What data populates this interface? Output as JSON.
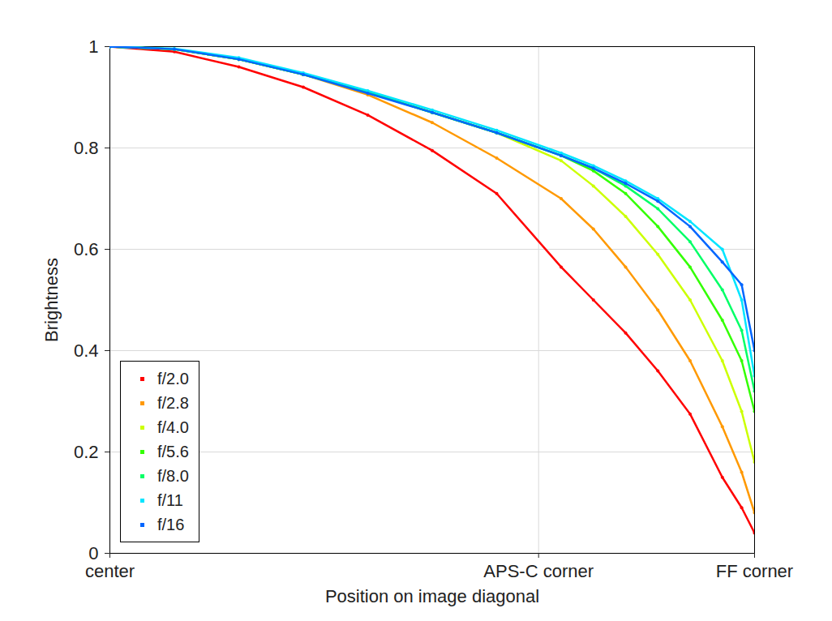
{
  "chart_data": {
    "type": "line",
    "marker": "dot",
    "x_label": "Position on image diagonal",
    "y_label": "Brightness",
    "x": [
      0,
      0.1,
      0.2,
      0.3,
      0.4,
      0.5,
      0.6,
      0.7,
      0.75,
      0.8,
      0.85,
      0.9,
      0.95,
      0.98,
      1.0
    ],
    "xlim": [
      0,
      1
    ],
    "xticks": [
      {
        "value": 0,
        "label": "center"
      },
      {
        "value": 0.665,
        "label": "APS-C corner"
      },
      {
        "value": 1,
        "label": "FF corner"
      }
    ],
    "ylim": [
      0,
      1
    ],
    "yticks": [
      0,
      0.2,
      0.4,
      0.6,
      0.8,
      1
    ],
    "grid": true,
    "legend": "lower left",
    "series": [
      {
        "name": "f/2.0",
        "color": "#ff0000",
        "values": [
          1,
          0.99,
          0.96,
          0.92,
          0.865,
          0.795,
          0.71,
          0.565,
          0.5,
          0.435,
          0.36,
          0.275,
          0.15,
          0.09,
          0.04
        ]
      },
      {
        "name": "f/2.8",
        "color": "#ff9900",
        "values": [
          1,
          0.995,
          0.975,
          0.945,
          0.905,
          0.85,
          0.78,
          0.7,
          0.64,
          0.565,
          0.48,
          0.38,
          0.25,
          0.16,
          0.08
        ]
      },
      {
        "name": "f/4.0",
        "color": "#ccff00",
        "values": [
          1,
          0.995,
          0.975,
          0.945,
          0.91,
          0.87,
          0.83,
          0.775,
          0.725,
          0.665,
          0.59,
          0.5,
          0.38,
          0.28,
          0.18
        ]
      },
      {
        "name": "f/5.6",
        "color": "#33ff00",
        "values": [
          1,
          0.995,
          0.975,
          0.945,
          0.91,
          0.87,
          0.83,
          0.785,
          0.755,
          0.71,
          0.645,
          0.565,
          0.46,
          0.38,
          0.28
        ]
      },
      {
        "name": "f/8.0",
        "color": "#00ff66",
        "values": [
          1,
          0.995,
          0.975,
          0.945,
          0.91,
          0.87,
          0.83,
          0.785,
          0.76,
          0.725,
          0.68,
          0.615,
          0.52,
          0.44,
          0.32
        ]
      },
      {
        "name": "f/11",
        "color": "#00e5ff",
        "values": [
          1,
          0.996,
          0.978,
          0.948,
          0.913,
          0.875,
          0.835,
          0.79,
          0.765,
          0.735,
          0.7,
          0.655,
          0.6,
          0.5,
          0.35
        ]
      },
      {
        "name": "f/16",
        "color": "#0066ff",
        "values": [
          1,
          0.995,
          0.975,
          0.945,
          0.908,
          0.87,
          0.83,
          0.785,
          0.76,
          0.73,
          0.695,
          0.645,
          0.575,
          0.53,
          0.4
        ]
      }
    ]
  }
}
